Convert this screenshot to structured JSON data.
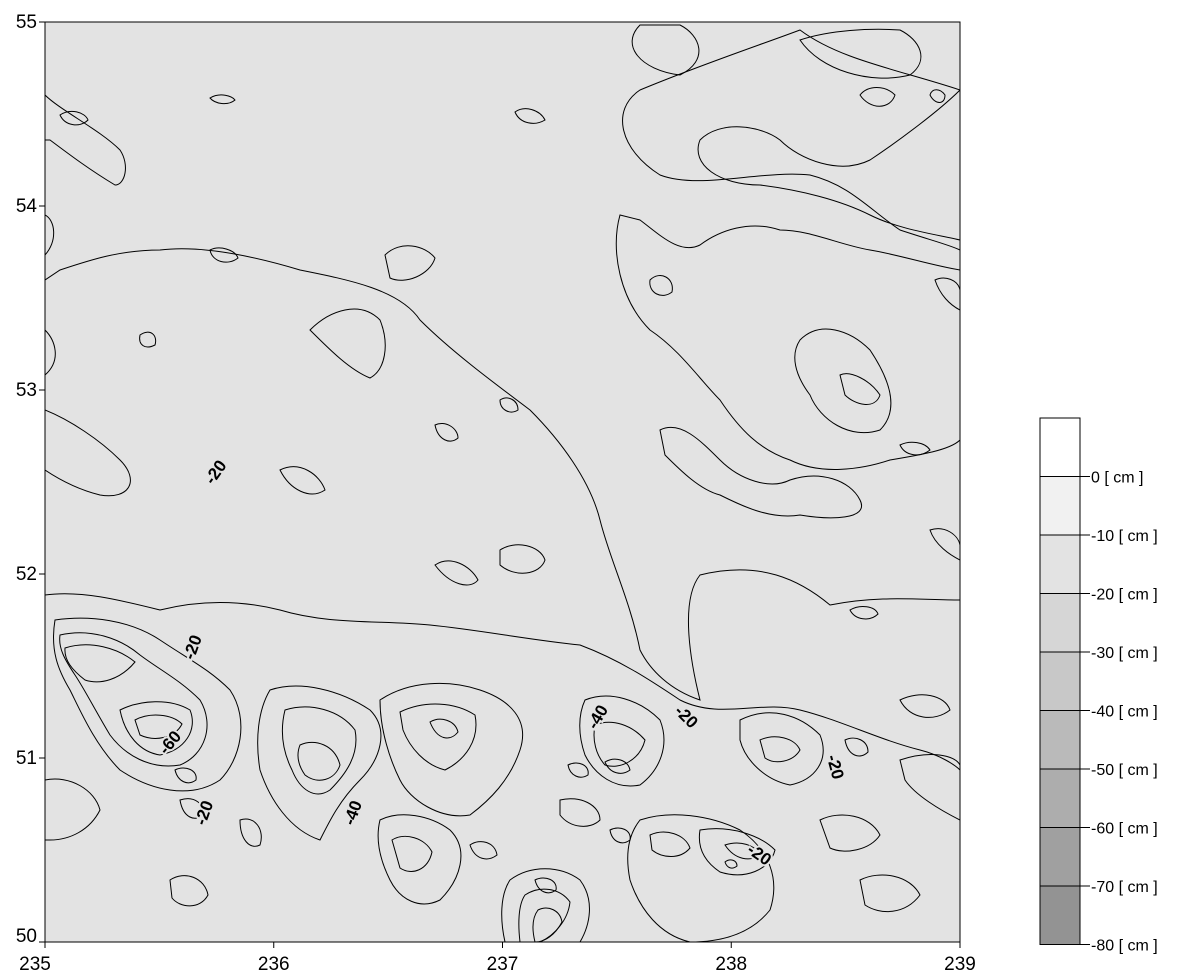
{
  "chart_data": {
    "type": "heatmap",
    "subtype": "filled-contour",
    "title": "",
    "xlabel": "",
    "ylabel": "",
    "xlim": [
      235,
      239
    ],
    "ylim": [
      50,
      55
    ],
    "xticks": [
      "235",
      "236",
      "237",
      "238",
      "239"
    ],
    "yticks": [
      "50",
      "51",
      "52",
      "53",
      "54",
      "55"
    ],
    "contour_levels": [
      0,
      -10,
      -20,
      -30,
      -40,
      -50,
      -60,
      -70,
      -80
    ],
    "unit": "cm",
    "legend": {
      "position": "right",
      "labels": [
        "0 [ cm ]",
        "-10 [ cm ]",
        "-20 [ cm ]",
        "-30 [ cm ]",
        "-40 [ cm ]",
        "-50 [ cm ]",
        "-60 [ cm ]",
        "-70 [ cm ]",
        "-80 [ cm ]"
      ],
      "colors": [
        "#ffffff",
        "#f1f1f1",
        "#e3e3e3",
        "#d6d6d6",
        "#c8c8c8",
        "#bababa",
        "#adadad",
        "#a0a0a0",
        "#939393"
      ]
    },
    "contour_labels": [
      {
        "text": "-20",
        "x": 235.75,
        "y": 52.55,
        "rotation": -55
      },
      {
        "text": "-20",
        "x": 235.65,
        "y": 51.6,
        "rotation": -70
      },
      {
        "text": "-60",
        "x": 235.55,
        "y": 51.08,
        "rotation": -50
      },
      {
        "text": "-20",
        "x": 235.7,
        "y": 50.7,
        "rotation": -70
      },
      {
        "text": "-40",
        "x": 236.35,
        "y": 50.7,
        "rotation": -70
      },
      {
        "text": "-40",
        "x": 237.42,
        "y": 51.22,
        "rotation": -60
      },
      {
        "text": "-20",
        "x": 237.8,
        "y": 51.22,
        "rotation": 45
      },
      {
        "text": "-20",
        "x": 238.45,
        "y": 50.95,
        "rotation": 75
      },
      {
        "text": "-20",
        "x": 238.12,
        "y": 50.47,
        "rotation": 35
      }
    ]
  }
}
